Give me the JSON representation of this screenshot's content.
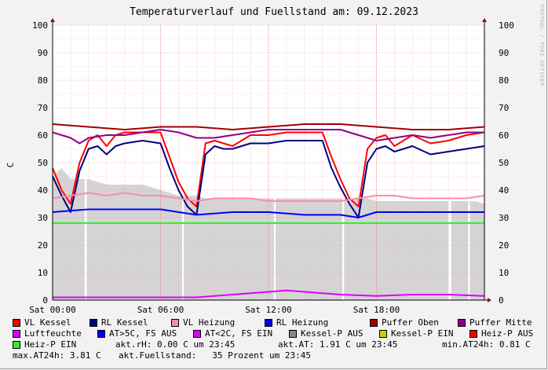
{
  "title": "Temperaturverlauf und Fuellstand am: 09.12.2023",
  "watermark": "RRDTOOL / TOBI OETIKER",
  "colors": {
    "vl_kessel": "#ff0000",
    "rl_kessel": "#000080",
    "vl_heizung": "#ff8aa8",
    "rl_heizung": "#0000ff",
    "puffer_oben": "#a00000",
    "puffer_mitte": "#8b008b",
    "luftfeuchte": "#dd00ff",
    "fill": "#d4d4d4"
  },
  "chart_data": {
    "type": "line",
    "title": "Temperaturverlauf und Fuellstand am: 09.12.2023",
    "ylabel": "C",
    "ylim": [
      0,
      100
    ],
    "yticks": [
      0,
      10,
      20,
      30,
      40,
      50,
      60,
      70,
      80,
      90,
      100
    ],
    "xlim": [
      0,
      24
    ],
    "xticks": [
      {
        "x": 0,
        "label": "Sat 00:00"
      },
      {
        "x": 6,
        "label": "Sat 06:00"
      },
      {
        "x": 12,
        "label": "Sat 12:00"
      },
      {
        "x": 18,
        "label": "Sat 18:00"
      }
    ],
    "grid": true,
    "legend_placement": "bottom",
    "fuellstand_area": {
      "x": [
        0,
        0.5,
        1,
        1.5,
        2,
        2.5,
        3,
        3.5,
        4,
        4.5,
        5,
        5.5,
        6,
        6.5,
        7,
        7.5,
        8,
        8.5,
        9,
        9.5,
        10,
        10.5,
        11,
        11.5,
        12,
        12.5,
        13,
        13.5,
        14,
        14.5,
        15,
        15.5,
        16,
        16.5,
        17,
        17.5,
        18,
        18.5,
        19,
        19.5,
        20,
        20.5,
        21,
        21.5,
        22,
        22.5,
        23,
        23.5,
        24
      ],
      "values": [
        45,
        48,
        44,
        44,
        44,
        43,
        42,
        42,
        42,
        42,
        42,
        41,
        40,
        39,
        38,
        38,
        38,
        37,
        37,
        37,
        37,
        37,
        37,
        37,
        37,
        37,
        37,
        37,
        37,
        37,
        37,
        37,
        37,
        37,
        37,
        37,
        36,
        36,
        36,
        36,
        36,
        36,
        36,
        36,
        36,
        36,
        36,
        36,
        35
      ]
    },
    "series": [
      {
        "name": "VL Kessel",
        "color": "#ff0000",
        "x": [
          0,
          0.5,
          1,
          1.5,
          2,
          2.5,
          3,
          3.5,
          4,
          5,
          6,
          6.5,
          7,
          7.5,
          8,
          8.5,
          9,
          9.5,
          10,
          11,
          12,
          13,
          14,
          15,
          15.5,
          16,
          16.5,
          17,
          17.5,
          18,
          18.5,
          19,
          20,
          21,
          22,
          23,
          24
        ],
        "values": [
          48,
          40,
          35,
          50,
          58,
          60,
          56,
          60,
          61,
          61,
          61,
          52,
          43,
          37,
          34,
          57,
          58,
          57,
          56,
          60,
          60,
          61,
          61,
          61,
          52,
          44,
          37,
          34,
          55,
          59,
          60,
          56,
          60,
          57,
          58,
          60,
          61
        ]
      },
      {
        "name": "RL Kessel",
        "color": "#000080",
        "x": [
          0,
          0.5,
          1,
          1.5,
          2,
          2.5,
          3,
          3.5,
          4,
          5,
          6,
          6.5,
          7,
          7.5,
          8,
          8.5,
          9,
          9.5,
          10,
          11,
          12,
          13,
          14,
          15,
          15.5,
          16,
          16.5,
          17,
          17.5,
          18,
          18.5,
          19,
          20,
          21,
          22,
          23,
          24
        ],
        "values": [
          45,
          38,
          32,
          47,
          55,
          56,
          53,
          56,
          57,
          58,
          57,
          48,
          40,
          34,
          31,
          53,
          56,
          55,
          55,
          57,
          57,
          58,
          58,
          58,
          48,
          41,
          35,
          30,
          50,
          55,
          56,
          54,
          56,
          53,
          54,
          55,
          56
        ]
      },
      {
        "name": "VL Heizung",
        "color": "#ff8aa8",
        "x": [
          0,
          1,
          2,
          3,
          4,
          5,
          6,
          7,
          8,
          9,
          10,
          11,
          12,
          13,
          14,
          15,
          16,
          17,
          18,
          19,
          20,
          21,
          22,
          23,
          24
        ],
        "values": [
          37,
          38,
          39,
          38,
          39,
          38,
          38,
          37,
          36,
          37,
          37,
          37,
          36,
          36,
          36,
          36,
          36,
          37,
          38,
          38,
          37,
          37,
          37,
          37,
          38
        ]
      },
      {
        "name": "RL Heizung",
        "color": "#0000ff",
        "x": [
          0,
          2,
          4,
          6,
          7,
          8,
          10,
          12,
          14,
          16,
          17,
          18,
          20,
          22,
          24
        ],
        "values": [
          32,
          33,
          33,
          33,
          32,
          31,
          32,
          32,
          31,
          31,
          30,
          32,
          32,
          32,
          32
        ]
      },
      {
        "name": "Puffer Oben",
        "color": "#a00000",
        "x": [
          0,
          2,
          4,
          6,
          8,
          10,
          12,
          14,
          16,
          18,
          20,
          22,
          24
        ],
        "values": [
          64,
          63,
          62,
          63,
          63,
          62,
          63,
          64,
          64,
          63,
          62,
          62,
          63
        ]
      },
      {
        "name": "Puffer Mitte",
        "color": "#8b008b",
        "x": [
          0,
          1,
          1.5,
          2,
          3,
          4,
          5,
          6,
          7,
          8,
          9,
          10,
          11,
          12,
          13,
          14,
          15,
          16,
          17,
          18,
          19,
          20,
          21,
          22,
          23,
          24
        ],
        "values": [
          61,
          59,
          57,
          59,
          60,
          60,
          61,
          62,
          61,
          59,
          59,
          60,
          61,
          62,
          62,
          62,
          62,
          62,
          60,
          58,
          59,
          60,
          59,
          60,
          61,
          61
        ]
      },
      {
        "name": "Heiz-P EIN",
        "color": "#33ee33",
        "x": [
          0,
          4,
          8,
          12,
          16,
          20,
          24
        ],
        "values": [
          28,
          28,
          28,
          28,
          28,
          28,
          28
        ]
      },
      {
        "name": "Luftfeuchte",
        "color": "#dd00ff",
        "x": [
          0,
          4,
          8,
          10,
          12,
          13,
          14,
          16,
          18,
          20,
          22,
          24
        ],
        "values": [
          1,
          1,
          1,
          2,
          3,
          3.5,
          3,
          2,
          1.5,
          2,
          2,
          1.5
        ]
      }
    ],
    "legend": [
      {
        "label": "VL Kessel",
        "color": "#ff0000"
      },
      {
        "label": "RL Kessel",
        "color": "#000080"
      },
      {
        "label": "VL Heizung",
        "color": "#ff8aa8"
      },
      {
        "label": "RL Heizung",
        "color": "#0000ff"
      },
      {
        "label": "Puffer Oben",
        "color": "#a00000"
      },
      {
        "label": "Puffer Mitte",
        "color": "#8b008b"
      },
      {
        "label": "Luftfeuchte",
        "color": "#dd00ff"
      },
      {
        "label": "AT>5C, FS AUS",
        "color": "#0000ff"
      },
      {
        "label": "AT<2C, FS EIN",
        "color": "#dd00ff"
      },
      {
        "label": "Kessel-P AUS",
        "color": "#888888"
      },
      {
        "label": "Kessel-P EIN",
        "color": "#cccc00"
      },
      {
        "label": "Heiz-P AUS",
        "color": "#ff0000"
      },
      {
        "label": "Heiz-P EIN",
        "color": "#33ee33"
      }
    ]
  },
  "stats": {
    "akt_rh": "akt.rH: 0.00 C um 23:45",
    "akt_at": "akt.AT: 1.91 C um 23:45",
    "min_at24h": "min.AT24h: 0.81 C",
    "max_at24h": "max.AT24h: 3.81 C",
    "akt_fuellstand": "akt.Fuellstand:   35 Prozent um 23:45"
  }
}
